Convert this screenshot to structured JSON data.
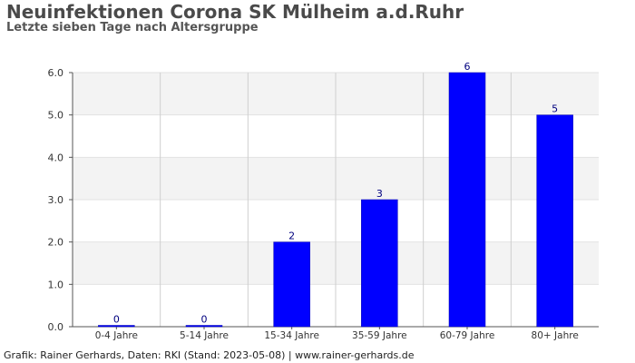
{
  "title": "Neuinfektionen Corona SK Mülheim a.d.Ruhr",
  "subtitle": "Letzte sieben Tage nach Altersgruppe",
  "footer": "Grafik: Rainer Gerhards, Daten: RKI (Stand: 2023-05-08) | www.rainer-gerhards.de",
  "chart_data": {
    "type": "bar",
    "categories": [
      "0-4 Jahre",
      "5-14 Jahre",
      "15-34 Jahre",
      "35-59 Jahre",
      "60-79 Jahre",
      "80+ Jahre"
    ],
    "values": [
      0,
      0,
      2,
      3,
      6,
      5
    ],
    "data_labels": [
      "0",
      "0",
      "2",
      "3",
      "6",
      "5"
    ],
    "ylim": [
      0,
      6
    ],
    "yticks": [
      "0.0",
      "1.0",
      "2.0",
      "3.0",
      "4.0",
      "5.0",
      "6.0"
    ],
    "grid": true,
    "bar_color": "#0000ff",
    "label_color": "#00007f",
    "band_color": "#f3f3f3"
  }
}
